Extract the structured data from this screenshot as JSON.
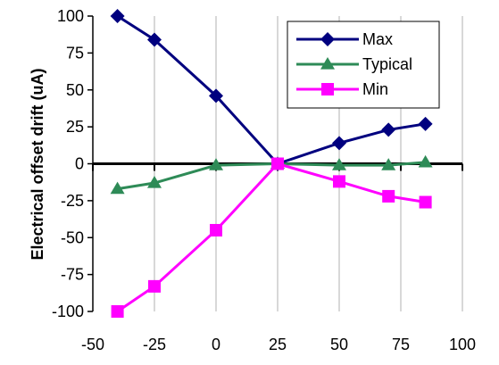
{
  "chart_data": {
    "type": "line",
    "title": "",
    "xlabel": "",
    "ylabel": "Electrical offset drift (uA)",
    "xlim": [
      -50,
      100
    ],
    "ylim": [
      -100,
      100
    ],
    "xticks": [
      -50,
      -25,
      0,
      25,
      50,
      75,
      100
    ],
    "yticks": [
      100,
      75,
      50,
      25,
      0,
      -25,
      -50,
      -75,
      -100
    ],
    "grid": true,
    "legend": "top-right",
    "x": [
      -40,
      -25,
      0,
      25,
      50,
      70,
      85
    ],
    "series": [
      {
        "name": "Max",
        "color": "#00007f",
        "marker": "diamond",
        "values": [
          100,
          84,
          46,
          0,
          14,
          23,
          27
        ]
      },
      {
        "name": "Typical",
        "color": "#2e8b57",
        "marker": "triangle",
        "values": [
          -17,
          -13,
          -1,
          0,
          -1,
          -1,
          1
        ]
      },
      {
        "name": "Min",
        "color": "#ff00ff",
        "marker": "square",
        "values": [
          -100,
          -83,
          -45,
          0,
          -12,
          -22,
          -26
        ]
      }
    ]
  }
}
